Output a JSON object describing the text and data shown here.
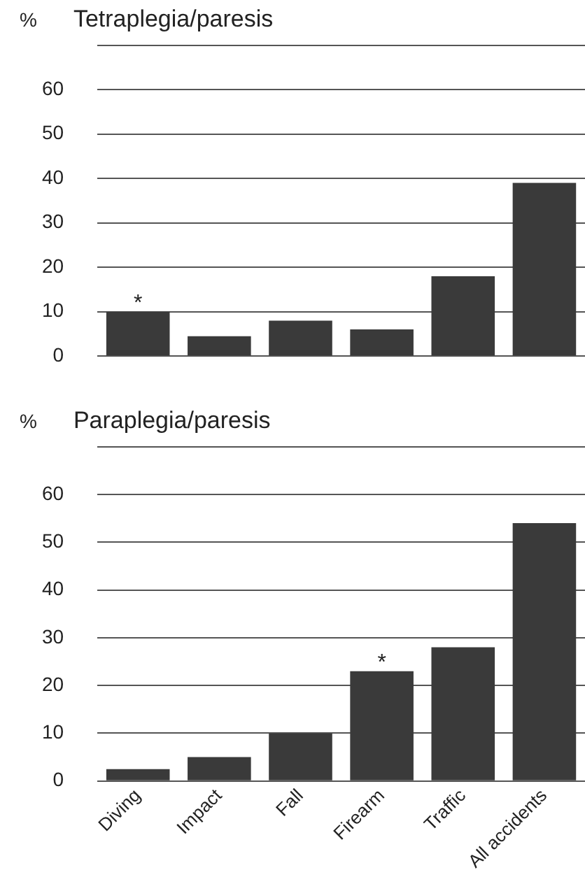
{
  "chart_data": [
    {
      "type": "bar",
      "title": "Tetraplegia/paresis",
      "ylabel": "%",
      "categories": [
        "Diving",
        "Impact",
        "Fall",
        "Firearm",
        "Traffic",
        "All accidents"
      ],
      "values": [
        10,
        4.5,
        8,
        6,
        18,
        39
      ],
      "color": "#3a3a3a",
      "ylim": [
        0,
        70
      ],
      "yticks": [
        0,
        10,
        20,
        30,
        40,
        50,
        60,
        {
          "value": 70,
          "label": null
        }
      ],
      "grid": "y",
      "tick_labels": "y",
      "annotations": [
        {
          "text": "*",
          "x": "Diving",
          "y": 10
        }
      ]
    },
    {
      "type": "bar",
      "title": "Paraplegia/paresis",
      "ylabel": "%",
      "categories": [
        "Diving",
        "Impact",
        "Fall",
        "Firearm",
        "Traffic",
        "All accidents"
      ],
      "values": [
        2.5,
        5,
        10,
        23,
        28,
        54
      ],
      "color": "#3a3a3a",
      "ylim": [
        0,
        70
      ],
      "yticks": [
        0,
        10,
        20,
        30,
        40,
        50,
        60,
        {
          "value": 70,
          "label": null
        }
      ],
      "grid": "y",
      "annotations": [
        {
          "text": "*",
          "x": "Firearm",
          "y": 23
        }
      ]
    }
  ]
}
